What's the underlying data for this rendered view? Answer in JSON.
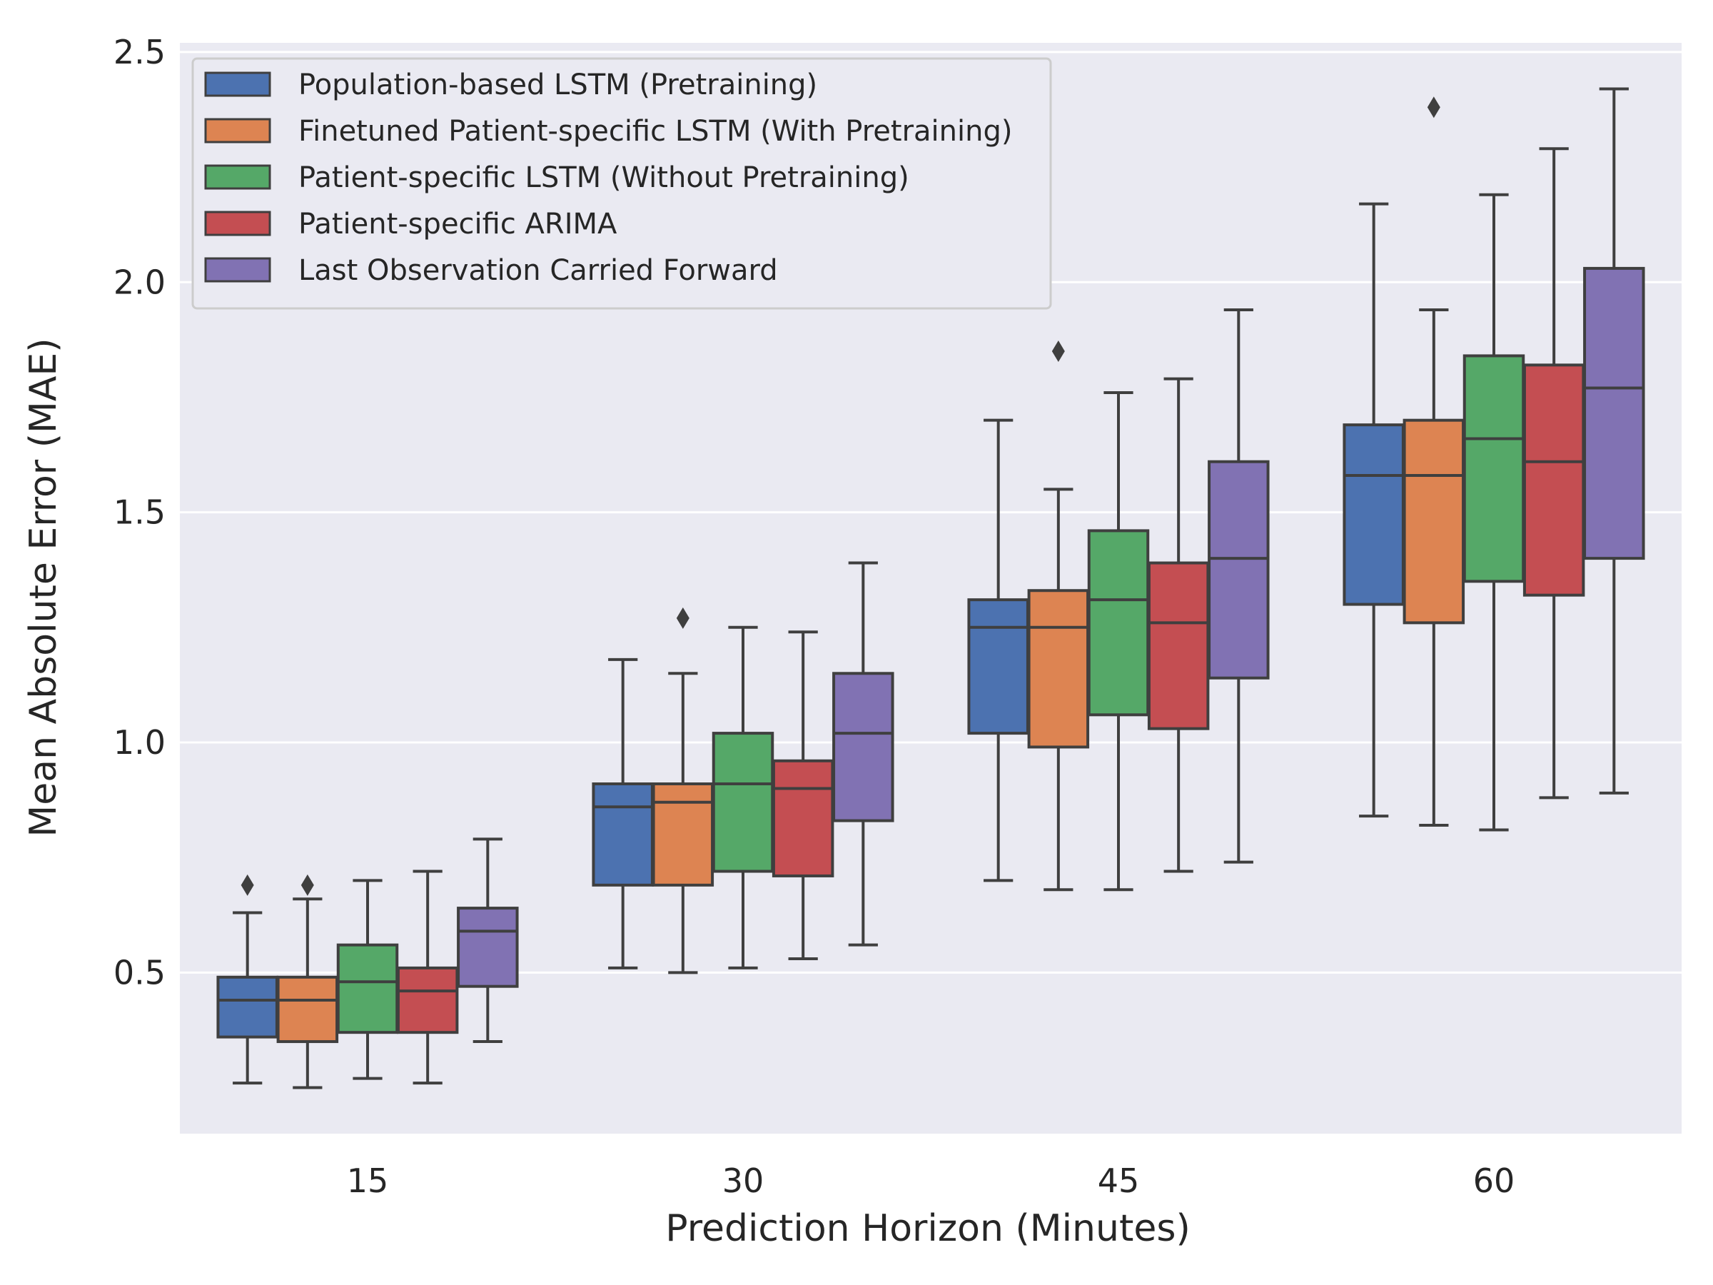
{
  "chart_data": {
    "type": "box",
    "xlabel": "Prediction Horizon (Minutes)",
    "ylabel": "Mean Absolute Error (MAE)",
    "categories": [
      "15",
      "30",
      "45",
      "60"
    ],
    "ylim": [
      0.15,
      2.52
    ],
    "yticks": [
      0.5,
      1.0,
      1.5,
      2.0,
      2.5
    ],
    "ytick_labels": [
      "0.5",
      "1.0",
      "1.5",
      "2.0",
      "2.5"
    ],
    "grid": "horizontal",
    "background": "#eaeaf2",
    "legend_position": "top-left",
    "series": [
      {
        "name": "Population-based LSTM (Pretraining)",
        "color": "#4c72b0",
        "boxes": [
          {
            "whislo": 0.26,
            "q1": 0.36,
            "med": 0.44,
            "q3": 0.49,
            "whishi": 0.63,
            "fliers": [
              0.69
            ]
          },
          {
            "whislo": 0.51,
            "q1": 0.69,
            "med": 0.86,
            "q3": 0.91,
            "whishi": 1.18,
            "fliers": []
          },
          {
            "whislo": 0.7,
            "q1": 1.02,
            "med": 1.25,
            "q3": 1.31,
            "whishi": 1.7,
            "fliers": []
          },
          {
            "whislo": 0.84,
            "q1": 1.3,
            "med": 1.58,
            "q3": 1.69,
            "whishi": 2.17,
            "fliers": []
          }
        ]
      },
      {
        "name": "Finetuned Patient-specific LSTM (With Pretraining)",
        "color": "#dd8452",
        "boxes": [
          {
            "whislo": 0.25,
            "q1": 0.35,
            "med": 0.44,
            "q3": 0.49,
            "whishi": 0.66,
            "fliers": [
              0.69
            ]
          },
          {
            "whislo": 0.5,
            "q1": 0.69,
            "med": 0.87,
            "q3": 0.91,
            "whishi": 1.15,
            "fliers": [
              1.27
            ]
          },
          {
            "whislo": 0.68,
            "q1": 0.99,
            "med": 1.25,
            "q3": 1.33,
            "whishi": 1.55,
            "fliers": [
              1.85
            ]
          },
          {
            "whislo": 0.82,
            "q1": 1.26,
            "med": 1.58,
            "q3": 1.7,
            "whishi": 1.94,
            "fliers": [
              2.38
            ]
          }
        ]
      },
      {
        "name": "Patient-specific LSTM (Without Pretraining)",
        "color": "#55a868",
        "boxes": [
          {
            "whislo": 0.27,
            "q1": 0.37,
            "med": 0.48,
            "q3": 0.56,
            "whishi": 0.7,
            "fliers": []
          },
          {
            "whislo": 0.51,
            "q1": 0.72,
            "med": 0.91,
            "q3": 1.02,
            "whishi": 1.25,
            "fliers": []
          },
          {
            "whislo": 0.68,
            "q1": 1.06,
            "med": 1.31,
            "q3": 1.46,
            "whishi": 1.76,
            "fliers": []
          },
          {
            "whislo": 0.81,
            "q1": 1.35,
            "med": 1.66,
            "q3": 1.84,
            "whishi": 2.19,
            "fliers": []
          }
        ]
      },
      {
        "name": "Patient-specific ARIMA",
        "color": "#c44e52",
        "boxes": [
          {
            "whislo": 0.26,
            "q1": 0.37,
            "med": 0.46,
            "q3": 0.51,
            "whishi": 0.72,
            "fliers": []
          },
          {
            "whislo": 0.53,
            "q1": 0.71,
            "med": 0.9,
            "q3": 0.96,
            "whishi": 1.24,
            "fliers": []
          },
          {
            "whislo": 0.72,
            "q1": 1.03,
            "med": 1.26,
            "q3": 1.39,
            "whishi": 1.79,
            "fliers": []
          },
          {
            "whislo": 0.88,
            "q1": 1.32,
            "med": 1.61,
            "q3": 1.82,
            "whishi": 2.29,
            "fliers": []
          }
        ]
      },
      {
        "name": "Last Observation Carried Forward",
        "color": "#8172b3",
        "boxes": [
          {
            "whislo": 0.35,
            "q1": 0.47,
            "med": 0.59,
            "q3": 0.64,
            "whishi": 0.79,
            "fliers": []
          },
          {
            "whislo": 0.56,
            "q1": 0.83,
            "med": 1.02,
            "q3": 1.15,
            "whishi": 1.39,
            "fliers": []
          },
          {
            "whislo": 0.74,
            "q1": 1.14,
            "med": 1.4,
            "q3": 1.61,
            "whishi": 1.94,
            "fliers": []
          },
          {
            "whislo": 0.89,
            "q1": 1.4,
            "med": 1.77,
            "q3": 2.03,
            "whishi": 2.42,
            "fliers": []
          }
        ]
      }
    ]
  }
}
